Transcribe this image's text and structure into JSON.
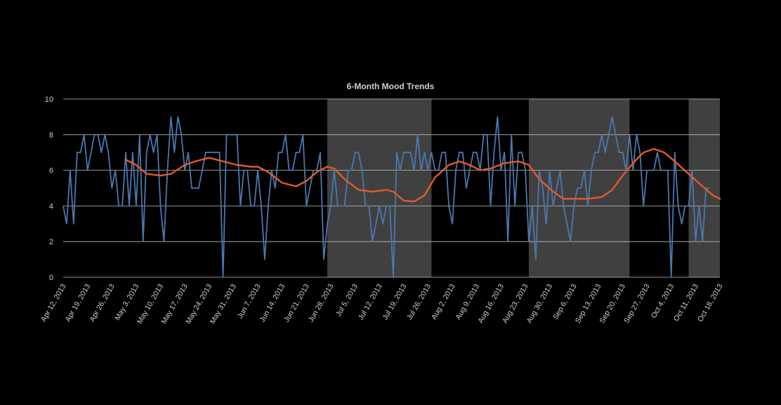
{
  "chart_data": {
    "type": "line",
    "title": "6-Month Mood Trends",
    "xlabel": "",
    "ylabel": "",
    "ylim": [
      0,
      10
    ],
    "yticks": [
      0,
      2,
      4,
      6,
      8,
      10
    ],
    "xlim": [
      "2013-04-12",
      "2013-10-18"
    ],
    "grid": true,
    "legend": "none",
    "x_tick_labels": [
      {
        "date": "2013-04-12",
        "label": "Apr 12, 2013"
      },
      {
        "date": "2013-04-19",
        "label": "Apr 19, 2013"
      },
      {
        "date": "2013-04-26",
        "label": "Apr 26, 2013"
      },
      {
        "date": "2013-05-03",
        "label": "May 3, 2013"
      },
      {
        "date": "2013-05-10",
        "label": "May 10, 2013"
      },
      {
        "date": "2013-05-17",
        "label": "May 17, 2013"
      },
      {
        "date": "2013-05-24",
        "label": "May 24, 2013"
      },
      {
        "date": "2013-05-31",
        "label": "May 31, 2013"
      },
      {
        "date": "2013-06-07",
        "label": "Jun 7, 2013"
      },
      {
        "date": "2013-06-14",
        "label": "Jun 14, 2013"
      },
      {
        "date": "2013-06-21",
        "label": "Jun 21, 2013"
      },
      {
        "date": "2013-06-28",
        "label": "Jun 28, 2013"
      },
      {
        "date": "2013-07-05",
        "label": "Jul 5, 2013"
      },
      {
        "date": "2013-07-12",
        "label": "Jul 12, 2013"
      },
      {
        "date": "2013-07-19",
        "label": "Jul 19, 2013"
      },
      {
        "date": "2013-07-26",
        "label": "Jul 26, 2013"
      },
      {
        "date": "2013-08-02",
        "label": "Aug 2, 2013"
      },
      {
        "date": "2013-08-09",
        "label": "Aug 9, 2013"
      },
      {
        "date": "2013-08-16",
        "label": "Aug 16, 2013"
      },
      {
        "date": "2013-08-23",
        "label": "Aug 23, 2013"
      },
      {
        "date": "2013-08-30",
        "label": "Aug 30, 2013"
      },
      {
        "date": "2013-09-06",
        "label": "Sep 6, 2013"
      },
      {
        "date": "2013-09-13",
        "label": "Sep 13, 2013"
      },
      {
        "date": "2013-09-20",
        "label": "Sep 20, 2013"
      },
      {
        "date": "2013-09-27",
        "label": "Sep 27, 2013"
      },
      {
        "date": "2013-10-04",
        "label": "Oct 4, 2013"
      },
      {
        "date": "2013-10-11",
        "label": "Oct 11, 2013"
      },
      {
        "date": "2013-10-18",
        "label": "Oct 18, 2013"
      }
    ],
    "shaded_ranges": [
      {
        "start": "2013-06-27",
        "end": "2013-07-27"
      },
      {
        "start": "2013-08-24",
        "end": "2013-09-22"
      },
      {
        "start": "2013-10-09",
        "end": "2013-10-18"
      }
    ],
    "colors": {
      "raw": "#4a78ad",
      "smooth": "#e05a2c",
      "band": "#404040",
      "background": "#000000"
    },
    "series": [
      {
        "key": "raw",
        "points": [
          [
            "2013-04-12",
            4
          ],
          [
            "2013-04-13",
            3
          ],
          [
            "2013-04-14",
            6
          ],
          [
            "2013-04-15",
            3
          ],
          [
            "2013-04-16",
            7
          ],
          [
            "2013-04-17",
            7
          ],
          [
            "2013-04-18",
            8
          ],
          [
            "2013-04-19",
            6
          ],
          [
            "2013-04-20",
            7
          ],
          [
            "2013-04-21",
            8
          ],
          [
            "2013-04-22",
            8
          ],
          [
            "2013-04-23",
            7
          ],
          [
            "2013-04-24",
            8
          ],
          [
            "2013-04-25",
            7
          ],
          [
            "2013-04-26",
            5
          ],
          [
            "2013-04-27",
            6
          ],
          [
            "2013-04-28",
            4
          ],
          [
            "2013-04-29",
            4
          ],
          [
            "2013-04-30",
            7
          ],
          [
            "2013-05-01",
            4
          ],
          [
            "2013-05-02",
            7
          ],
          [
            "2013-05-03",
            4
          ],
          [
            "2013-05-04",
            8
          ],
          [
            "2013-05-05",
            2
          ],
          [
            "2013-05-06",
            7
          ],
          [
            "2013-05-07",
            8
          ],
          [
            "2013-05-08",
            7
          ],
          [
            "2013-05-09",
            8
          ],
          [
            "2013-05-10",
            4
          ],
          [
            "2013-05-11",
            2
          ],
          [
            "2013-05-12",
            6
          ],
          [
            "2013-05-13",
            9
          ],
          [
            "2013-05-14",
            7
          ],
          [
            "2013-05-15",
            9
          ],
          [
            "2013-05-16",
            8
          ],
          [
            "2013-05-17",
            6
          ],
          [
            "2013-05-18",
            7
          ],
          [
            "2013-05-19",
            5
          ],
          [
            "2013-05-20",
            5
          ],
          [
            "2013-05-21",
            5
          ],
          [
            "2013-05-22",
            6
          ],
          [
            "2013-05-23",
            7
          ],
          [
            "2013-05-24",
            7
          ],
          [
            "2013-05-25",
            7
          ],
          [
            "2013-05-26",
            7
          ],
          [
            "2013-05-27",
            7
          ],
          [
            "2013-05-28",
            0
          ],
          [
            "2013-05-29",
            8
          ],
          [
            "2013-05-30",
            8
          ],
          [
            "2013-05-31",
            8
          ],
          [
            "2013-06-01",
            8
          ],
          [
            "2013-06-02",
            4
          ],
          [
            "2013-06-03",
            6
          ],
          [
            "2013-06-04",
            6
          ],
          [
            "2013-06-05",
            4
          ],
          [
            "2013-06-06",
            4
          ],
          [
            "2013-06-07",
            6
          ],
          [
            "2013-06-08",
            4
          ],
          [
            "2013-06-09",
            1
          ],
          [
            "2013-06-10",
            4
          ],
          [
            "2013-06-11",
            6
          ],
          [
            "2013-06-12",
            5
          ],
          [
            "2013-06-13",
            7
          ],
          [
            "2013-06-14",
            7
          ],
          [
            "2013-06-15",
            8
          ],
          [
            "2013-06-16",
            6
          ],
          [
            "2013-06-17",
            6
          ],
          [
            "2013-06-18",
            7
          ],
          [
            "2013-06-19",
            7
          ],
          [
            "2013-06-20",
            8
          ],
          [
            "2013-06-21",
            4
          ],
          [
            "2013-06-22",
            5
          ],
          [
            "2013-06-23",
            6
          ],
          [
            "2013-06-24",
            6
          ],
          [
            "2013-06-25",
            7
          ],
          [
            "2013-06-26",
            1
          ],
          [
            "2013-06-27",
            3
          ],
          [
            "2013-06-28",
            4
          ],
          [
            "2013-06-29",
            6
          ],
          [
            "2013-06-30",
            4
          ],
          [
            "2013-07-01",
            4
          ],
          [
            "2013-07-02",
            4
          ],
          [
            "2013-07-03",
            6
          ],
          [
            "2013-07-04",
            6
          ],
          [
            "2013-07-05",
            7
          ],
          [
            "2013-07-06",
            7
          ],
          [
            "2013-07-07",
            6
          ],
          [
            "2013-07-08",
            4
          ],
          [
            "2013-07-09",
            4
          ],
          [
            "2013-07-10",
            2
          ],
          [
            "2013-07-11",
            3
          ],
          [
            "2013-07-12",
            4
          ],
          [
            "2013-07-13",
            3
          ],
          [
            "2013-07-14",
            4
          ],
          [
            "2013-07-15",
            4
          ],
          [
            "2013-07-16",
            0
          ],
          [
            "2013-07-17",
            7
          ],
          [
            "2013-07-18",
            6
          ],
          [
            "2013-07-19",
            7
          ],
          [
            "2013-07-20",
            7
          ],
          [
            "2013-07-21",
            7
          ],
          [
            "2013-07-22",
            6
          ],
          [
            "2013-07-23",
            8
          ],
          [
            "2013-07-24",
            6
          ],
          [
            "2013-07-25",
            7
          ],
          [
            "2013-07-26",
            6
          ],
          [
            "2013-07-27",
            7
          ],
          [
            "2013-07-28",
            6
          ],
          [
            "2013-07-29",
            6
          ],
          [
            "2013-07-30",
            7
          ],
          [
            "2013-07-31",
            7
          ],
          [
            "2013-08-01",
            4
          ],
          [
            "2013-08-02",
            3
          ],
          [
            "2013-08-03",
            6
          ],
          [
            "2013-08-04",
            7
          ],
          [
            "2013-08-05",
            7
          ],
          [
            "2013-08-06",
            5
          ],
          [
            "2013-08-07",
            6
          ],
          [
            "2013-08-08",
            7
          ],
          [
            "2013-08-09",
            7
          ],
          [
            "2013-08-10",
            6
          ],
          [
            "2013-08-11",
            8
          ],
          [
            "2013-08-12",
            8
          ],
          [
            "2013-08-13",
            4
          ],
          [
            "2013-08-14",
            7
          ],
          [
            "2013-08-15",
            9
          ],
          [
            "2013-08-16",
            6
          ],
          [
            "2013-08-17",
            7
          ],
          [
            "2013-08-18",
            2
          ],
          [
            "2013-08-19",
            8
          ],
          [
            "2013-08-20",
            4
          ],
          [
            "2013-08-21",
            7
          ],
          [
            "2013-08-22",
            7
          ],
          [
            "2013-08-23",
            6
          ],
          [
            "2013-08-24",
            2
          ],
          [
            "2013-08-25",
            4
          ],
          [
            "2013-08-26",
            1
          ],
          [
            "2013-08-27",
            6
          ],
          [
            "2013-08-28",
            5
          ],
          [
            "2013-08-29",
            3
          ],
          [
            "2013-08-30",
            6
          ],
          [
            "2013-08-31",
            4
          ],
          [
            "2013-09-01",
            5
          ],
          [
            "2013-09-02",
            6
          ],
          [
            "2013-09-03",
            4
          ],
          [
            "2013-09-04",
            3
          ],
          [
            "2013-09-05",
            2
          ],
          [
            "2013-09-06",
            4
          ],
          [
            "2013-09-07",
            5
          ],
          [
            "2013-09-08",
            5
          ],
          [
            "2013-09-09",
            6
          ],
          [
            "2013-09-10",
            4
          ],
          [
            "2013-09-11",
            6
          ],
          [
            "2013-09-12",
            7
          ],
          [
            "2013-09-13",
            7
          ],
          [
            "2013-09-14",
            8
          ],
          [
            "2013-09-15",
            7
          ],
          [
            "2013-09-16",
            8
          ],
          [
            "2013-09-17",
            9
          ],
          [
            "2013-09-18",
            8
          ],
          [
            "2013-09-19",
            7
          ],
          [
            "2013-09-20",
            7
          ],
          [
            "2013-09-21",
            6
          ],
          [
            "2013-09-22",
            8
          ],
          [
            "2013-09-23",
            6
          ],
          [
            "2013-09-24",
            8
          ],
          [
            "2013-09-25",
            7
          ],
          [
            "2013-09-26",
            4
          ],
          [
            "2013-09-27",
            6
          ],
          [
            "2013-09-28",
            6
          ],
          [
            "2013-09-29",
            6
          ],
          [
            "2013-09-30",
            7
          ],
          [
            "2013-10-01",
            6
          ],
          [
            "2013-10-02",
            6
          ],
          [
            "2013-10-03",
            6
          ],
          [
            "2013-10-04",
            0
          ],
          [
            "2013-10-05",
            7
          ],
          [
            "2013-10-06",
            4
          ],
          [
            "2013-10-07",
            3
          ],
          [
            "2013-10-08",
            4
          ],
          [
            "2013-10-09",
            4
          ],
          [
            "2013-10-10",
            6
          ],
          [
            "2013-10-11",
            2
          ],
          [
            "2013-10-12",
            4
          ],
          [
            "2013-10-13",
            2
          ],
          [
            "2013-10-14",
            5
          ],
          [
            "2013-10-15",
            5
          ]
        ]
      },
      {
        "key": "smooth",
        "points": [
          [
            "2013-04-30",
            6.6
          ],
          [
            "2013-05-03",
            6.3
          ],
          [
            "2013-05-06",
            5.8
          ],
          [
            "2013-05-10",
            5.7
          ],
          [
            "2013-05-13",
            5.8
          ],
          [
            "2013-05-17",
            6.3
          ],
          [
            "2013-05-20",
            6.5
          ],
          [
            "2013-05-24",
            6.7
          ],
          [
            "2013-05-28",
            6.5
          ],
          [
            "2013-06-01",
            6.3
          ],
          [
            "2013-06-05",
            6.2
          ],
          [
            "2013-06-07",
            6.2
          ],
          [
            "2013-06-10",
            5.9
          ],
          [
            "2013-06-14",
            5.3
          ],
          [
            "2013-06-18",
            5.1
          ],
          [
            "2013-06-21",
            5.4
          ],
          [
            "2013-06-24",
            5.9
          ],
          [
            "2013-06-27",
            6.2
          ],
          [
            "2013-06-29",
            6.1
          ],
          [
            "2013-07-02",
            5.5
          ],
          [
            "2013-07-06",
            4.9
          ],
          [
            "2013-07-10",
            4.8
          ],
          [
            "2013-07-14",
            4.9
          ],
          [
            "2013-07-16",
            4.8
          ],
          [
            "2013-07-19",
            4.3
          ],
          [
            "2013-07-22",
            4.25
          ],
          [
            "2013-07-25",
            4.6
          ],
          [
            "2013-07-28",
            5.6
          ],
          [
            "2013-08-01",
            6.3
          ],
          [
            "2013-08-04",
            6.5
          ],
          [
            "2013-08-07",
            6.3
          ],
          [
            "2013-08-10",
            6.0
          ],
          [
            "2013-08-13",
            6.1
          ],
          [
            "2013-08-17",
            6.4
          ],
          [
            "2013-08-21",
            6.5
          ],
          [
            "2013-08-24",
            6.3
          ],
          [
            "2013-08-27",
            5.5
          ],
          [
            "2013-08-31",
            4.8
          ],
          [
            "2013-09-03",
            4.4
          ],
          [
            "2013-09-06",
            4.4
          ],
          [
            "2013-09-10",
            4.4
          ],
          [
            "2013-09-14",
            4.5
          ],
          [
            "2013-09-17",
            4.9
          ],
          [
            "2013-09-20",
            5.7
          ],
          [
            "2013-09-23",
            6.4
          ],
          [
            "2013-09-26",
            7.0
          ],
          [
            "2013-09-29",
            7.2
          ],
          [
            "2013-10-02",
            7.0
          ],
          [
            "2013-10-05",
            6.5
          ],
          [
            "2013-10-09",
            5.8
          ],
          [
            "2013-10-13",
            5.1
          ],
          [
            "2013-10-16",
            4.6
          ],
          [
            "2013-10-18",
            4.4
          ]
        ]
      }
    ]
  }
}
